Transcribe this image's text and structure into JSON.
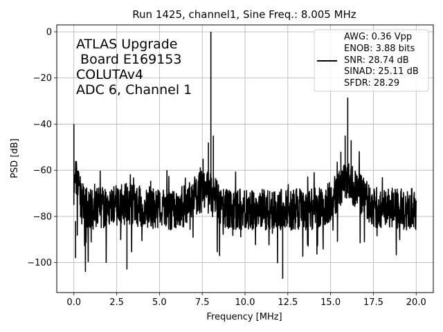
{
  "chart_data": {
    "type": "line",
    "title": "Run 1425, channel1, Sine Freq.: 8.005 MHz",
    "xlabel": "Frequency [MHz]",
    "ylabel": "PSD [dB]",
    "xlim": [
      -1.0,
      21.0
    ],
    "ylim": [
      -113,
      3
    ],
    "xticks": [
      0.0,
      2.5,
      5.0,
      7.5,
      10.0,
      12.5,
      15.0,
      17.5,
      20.0
    ],
    "xtick_labels": [
      "0.0",
      "2.5",
      "5.0",
      "7.5",
      "10.0",
      "12.5",
      "15.0",
      "17.5",
      "20.0"
    ],
    "yticks": [
      0,
      -20,
      -40,
      -60,
      -80,
      -100
    ],
    "ytick_labels": [
      "0",
      "−20",
      "−40",
      "−60",
      "−80",
      "−100"
    ],
    "grid": true,
    "annotation_lines": [
      "ATLAS Upgrade",
      " Board E169153",
      "COLUTAv4",
      "ADC 6, Channel 1"
    ],
    "legend": {
      "placement": "top-right",
      "lines": [
        "AWG: 0.36 Vpp",
        "ENOB: 3.88 bits",
        "SNR: 28.74 dB",
        "SINAD: 25.11 dB",
        "SFDR: 28.29"
      ]
    },
    "series": [
      {
        "color": "#000000",
        "description_points": {
          "fundamental": {
            "x": 8.005,
            "y": 0
          },
          "harmonic_peak": {
            "x": 16.0,
            "y": -28.5
          },
          "dc_peak": {
            "x": 0.0,
            "y": -40
          },
          "noise_floor_mean": -77,
          "deep_dips": [
            {
              "x": 3.1,
              "y": -103
            },
            {
              "x": 12.2,
              "y": -107
            },
            {
              "x": 0.1,
              "y": -98
            }
          ]
        }
      }
    ]
  }
}
